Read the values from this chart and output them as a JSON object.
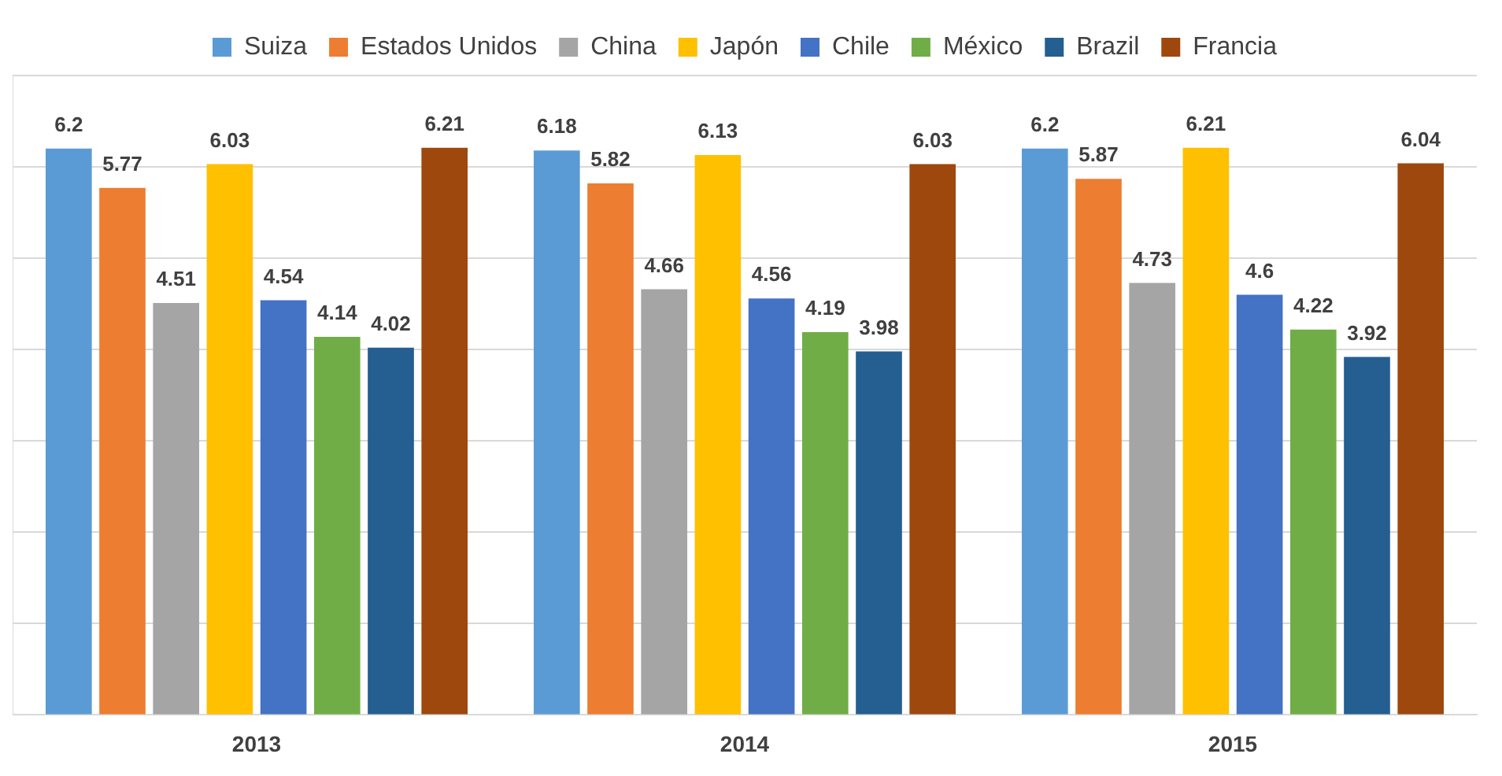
{
  "chart_data": {
    "type": "bar",
    "categories": [
      "2013",
      "2014",
      "2015"
    ],
    "series": [
      {
        "name": "Suiza",
        "color": "#5b9bd5",
        "values": [
          6.2,
          6.18,
          6.2
        ]
      },
      {
        "name": "Estados Unidos",
        "color": "#ed7d31",
        "values": [
          5.77,
          5.82,
          5.87
        ]
      },
      {
        "name": "China",
        "color": "#a5a5a5",
        "values": [
          4.51,
          4.66,
          4.73
        ]
      },
      {
        "name": "Japón",
        "color": "#ffc000",
        "values": [
          6.03,
          6.13,
          6.21
        ]
      },
      {
        "name": "Chile",
        "color": "#4472c4",
        "values": [
          4.54,
          4.56,
          4.6
        ]
      },
      {
        "name": "México",
        "color": "#70ad47",
        "values": [
          4.14,
          4.19,
          4.22
        ]
      },
      {
        "name": "Brazil",
        "color": "#255e91",
        "values": [
          4.02,
          3.98,
          3.92
        ]
      },
      {
        "name": "Francia",
        "color": "#9e480e",
        "values": [
          6.21,
          6.03,
          6.04
        ]
      }
    ],
    "ylim": [
      0,
      7
    ],
    "yticks": [
      {
        "value": 0,
        "label": null
      },
      {
        "value": 1,
        "label": null
      },
      {
        "value": 2,
        "label": null
      },
      {
        "value": 3,
        "label": null
      },
      {
        "value": 4,
        "label": null
      },
      {
        "value": 5,
        "label": null
      },
      {
        "value": 6,
        "label": null
      },
      {
        "value": 7,
        "label": null
      }
    ],
    "tick_labels": "x",
    "grid": "y",
    "legend": "top",
    "data_labels": true
  }
}
